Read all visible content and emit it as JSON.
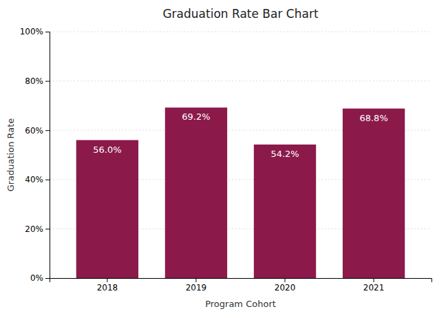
{
  "chart_data": {
    "type": "bar",
    "title": "Graduation Rate Bar Chart",
    "xlabel": "Program Cohort",
    "ylabel": "Graduation Rate",
    "categories": [
      "2018",
      "2019",
      "2020",
      "2021"
    ],
    "values": [
      56.0,
      69.2,
      54.2,
      68.8
    ],
    "value_labels": [
      "56.0%",
      "69.2%",
      "54.2%",
      "68.8%"
    ],
    "data_labels": true,
    "color": "#8B1A4A",
    "ylim": [
      0,
      100
    ],
    "yticks": [
      {
        "value": 0,
        "label": "0%"
      },
      {
        "value": 20,
        "label": "20%"
      },
      {
        "value": 40,
        "label": "40%"
      },
      {
        "value": 60,
        "label": "60%"
      },
      {
        "value": 80,
        "label": "80%"
      },
      {
        "value": 100,
        "label": "100%"
      }
    ],
    "grid": true
  }
}
